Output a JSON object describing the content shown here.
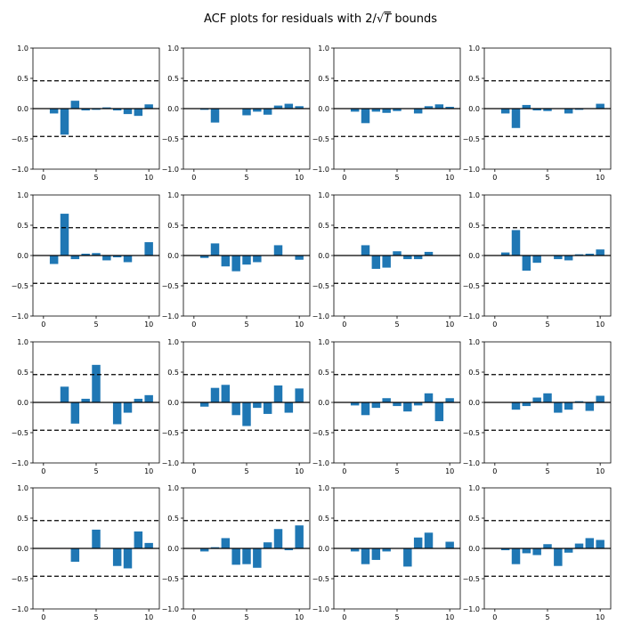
{
  "title": {
    "prefix": "ACF plots for residuals with 2/",
    "sqrt_sign": "√",
    "sqrt_arg": "T",
    "suffix": " bounds"
  },
  "chart_data": {
    "type": "bar",
    "layout": "4x4 grid of ACF subplots",
    "xlim": [
      -1,
      11
    ],
    "ylim": [
      -1.0,
      1.0
    ],
    "xticks": [
      0,
      5,
      10
    ],
    "xtick_labels": [
      "0",
      "5",
      "10"
    ],
    "yticks": [
      -1.0,
      -0.5,
      0.0,
      0.5,
      1.0
    ],
    "ytick_labels": [
      "−1.0",
      "−0.5",
      "0.0",
      "0.5",
      "1.0"
    ],
    "bound": 0.46,
    "bound_style": "dashed",
    "zero_line": true,
    "bar_color": "#1f77b4",
    "lags": [
      0,
      1,
      2,
      3,
      4,
      5,
      6,
      7,
      8,
      9,
      10
    ],
    "panels": [
      [
        0,
        -0.08,
        -0.43,
        0.13,
        -0.03,
        -0.02,
        0.02,
        -0.03,
        -0.09,
        -0.12,
        0.07
      ],
      [
        0,
        -0.02,
        -0.23,
        0.0,
        0.0,
        -0.11,
        -0.05,
        -0.1,
        0.05,
        0.08,
        0.04
      ],
      [
        0,
        -0.05,
        -0.24,
        -0.05,
        -0.07,
        -0.04,
        0.0,
        -0.08,
        0.04,
        0.07,
        0.03
      ],
      [
        0,
        -0.08,
        -0.32,
        0.06,
        -0.03,
        -0.04,
        0.0,
        -0.08,
        -0.02,
        0.0,
        0.08
      ],
      [
        0,
        -0.14,
        0.69,
        -0.06,
        0.03,
        0.04,
        -0.08,
        -0.03,
        -0.11,
        0.0,
        0.22
      ],
      [
        0,
        -0.04,
        0.2,
        -0.18,
        -0.26,
        -0.15,
        -0.11,
        0.0,
        0.17,
        0.0,
        -0.07
      ],
      [
        0,
        0.0,
        0.17,
        -0.22,
        -0.2,
        0.07,
        -0.06,
        -0.06,
        0.06,
        0.0,
        0.0
      ],
      [
        0,
        0.05,
        0.42,
        -0.25,
        -0.12,
        0.0,
        -0.06,
        -0.08,
        0.02,
        0.03,
        0.1
      ],
      [
        0,
        0.0,
        0.26,
        -0.35,
        0.06,
        0.62,
        0.0,
        -0.36,
        -0.17,
        0.06,
        0.12
      ],
      [
        0,
        -0.07,
        0.24,
        0.29,
        -0.21,
        -0.39,
        -0.09,
        -0.19,
        0.28,
        -0.17,
        0.23
      ],
      [
        0,
        -0.05,
        -0.21,
        -0.09,
        0.07,
        -0.06,
        -0.15,
        -0.05,
        0.15,
        -0.31,
        0.07
      ],
      [
        0,
        0.0,
        -0.12,
        -0.06,
        0.08,
        0.15,
        -0.17,
        -0.12,
        0.02,
        -0.14,
        0.11
      ],
      [
        0,
        0.0,
        0.0,
        -0.22,
        0.0,
        0.31,
        0.0,
        -0.29,
        -0.33,
        0.28,
        0.09
      ],
      [
        0,
        -0.05,
        0.02,
        0.17,
        -0.27,
        -0.26,
        -0.32,
        0.1,
        0.32,
        -0.03,
        0.38
      ],
      [
        0,
        -0.05,
        -0.26,
        -0.19,
        -0.05,
        0.0,
        -0.3,
        0.18,
        0.26,
        0.0,
        0.11
      ],
      [
        0,
        -0.03,
        -0.26,
        -0.08,
        -0.11,
        0.07,
        -0.29,
        -0.07,
        0.08,
        0.17,
        0.14
      ]
    ]
  }
}
